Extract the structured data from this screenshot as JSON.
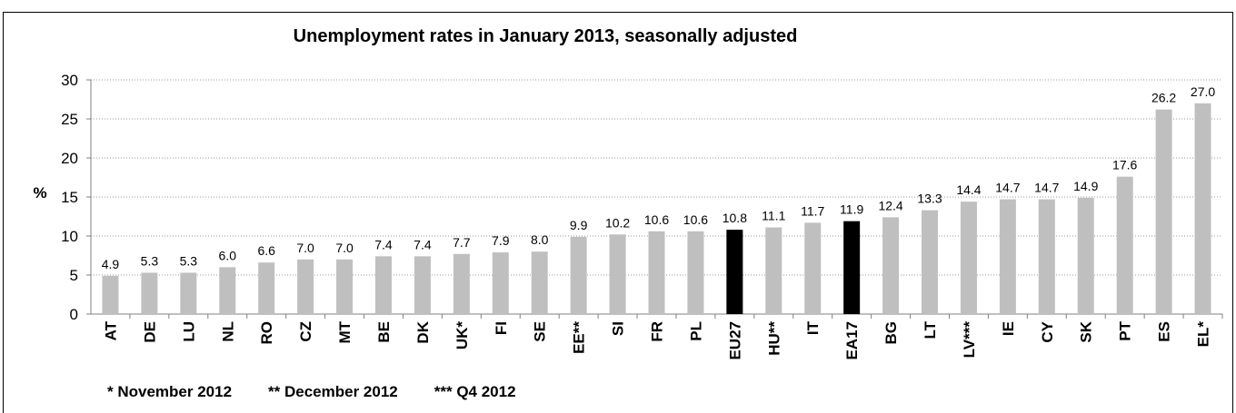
{
  "chart_data": {
    "type": "bar",
    "title": "Unemployment rates in January 2013, seasonally adjusted",
    "y_label": "%",
    "categories": [
      "AT",
      "DE",
      "LU",
      "NL",
      "RO",
      "CZ",
      "MT",
      "BE",
      "DK",
      "UK*",
      "FI",
      "SE",
      "EE**",
      "SI",
      "FR",
      "PL",
      "EU27",
      "HU**",
      "IT",
      "EA17",
      "BG",
      "LT",
      "LV***",
      "IE",
      "CY",
      "SK",
      "PT",
      "ES",
      "EL*"
    ],
    "values": [
      4.9,
      5.3,
      5.3,
      6.0,
      6.6,
      7.0,
      7.0,
      7.4,
      7.4,
      7.7,
      7.9,
      8.0,
      9.9,
      10.2,
      10.6,
      10.6,
      10.8,
      11.1,
      11.7,
      11.9,
      12.4,
      13.3,
      14.4,
      14.7,
      14.7,
      14.9,
      17.6,
      26.2,
      27.0
    ],
    "value_labels": [
      "4.9",
      "5.3",
      "5.3",
      "6.0",
      "6.6",
      "7.0",
      "7.0",
      "7.4",
      "7.4",
      "7.7",
      "7.9",
      "8.0",
      "9.9",
      "10.2",
      "10.6",
      "10.6",
      "10.8",
      "11.1",
      "11.7",
      "11.9",
      "12.4",
      "13.3",
      "14.4",
      "14.7",
      "14.7",
      "14.9",
      "17.6",
      "26.2",
      "27.0"
    ],
    "colors": [
      "#bfbfbf",
      "#bfbfbf",
      "#bfbfbf",
      "#bfbfbf",
      "#bfbfbf",
      "#bfbfbf",
      "#bfbfbf",
      "#bfbfbf",
      "#bfbfbf",
      "#bfbfbf",
      "#bfbfbf",
      "#bfbfbf",
      "#bfbfbf",
      "#bfbfbf",
      "#bfbfbf",
      "#bfbfbf",
      "#000000",
      "#bfbfbf",
      "#bfbfbf",
      "#000000",
      "#bfbfbf",
      "#bfbfbf",
      "#bfbfbf",
      "#bfbfbf",
      "#bfbfbf",
      "#bfbfbf",
      "#bfbfbf",
      "#bfbfbf",
      "#bfbfbf"
    ],
    "ylim": [
      0,
      30
    ],
    "yticks": [
      0,
      5,
      10,
      15,
      20,
      25,
      30
    ],
    "grid": true,
    "footnotes": [
      "* November 2012",
      "** December 2012",
      "*** Q4 2012"
    ]
  }
}
